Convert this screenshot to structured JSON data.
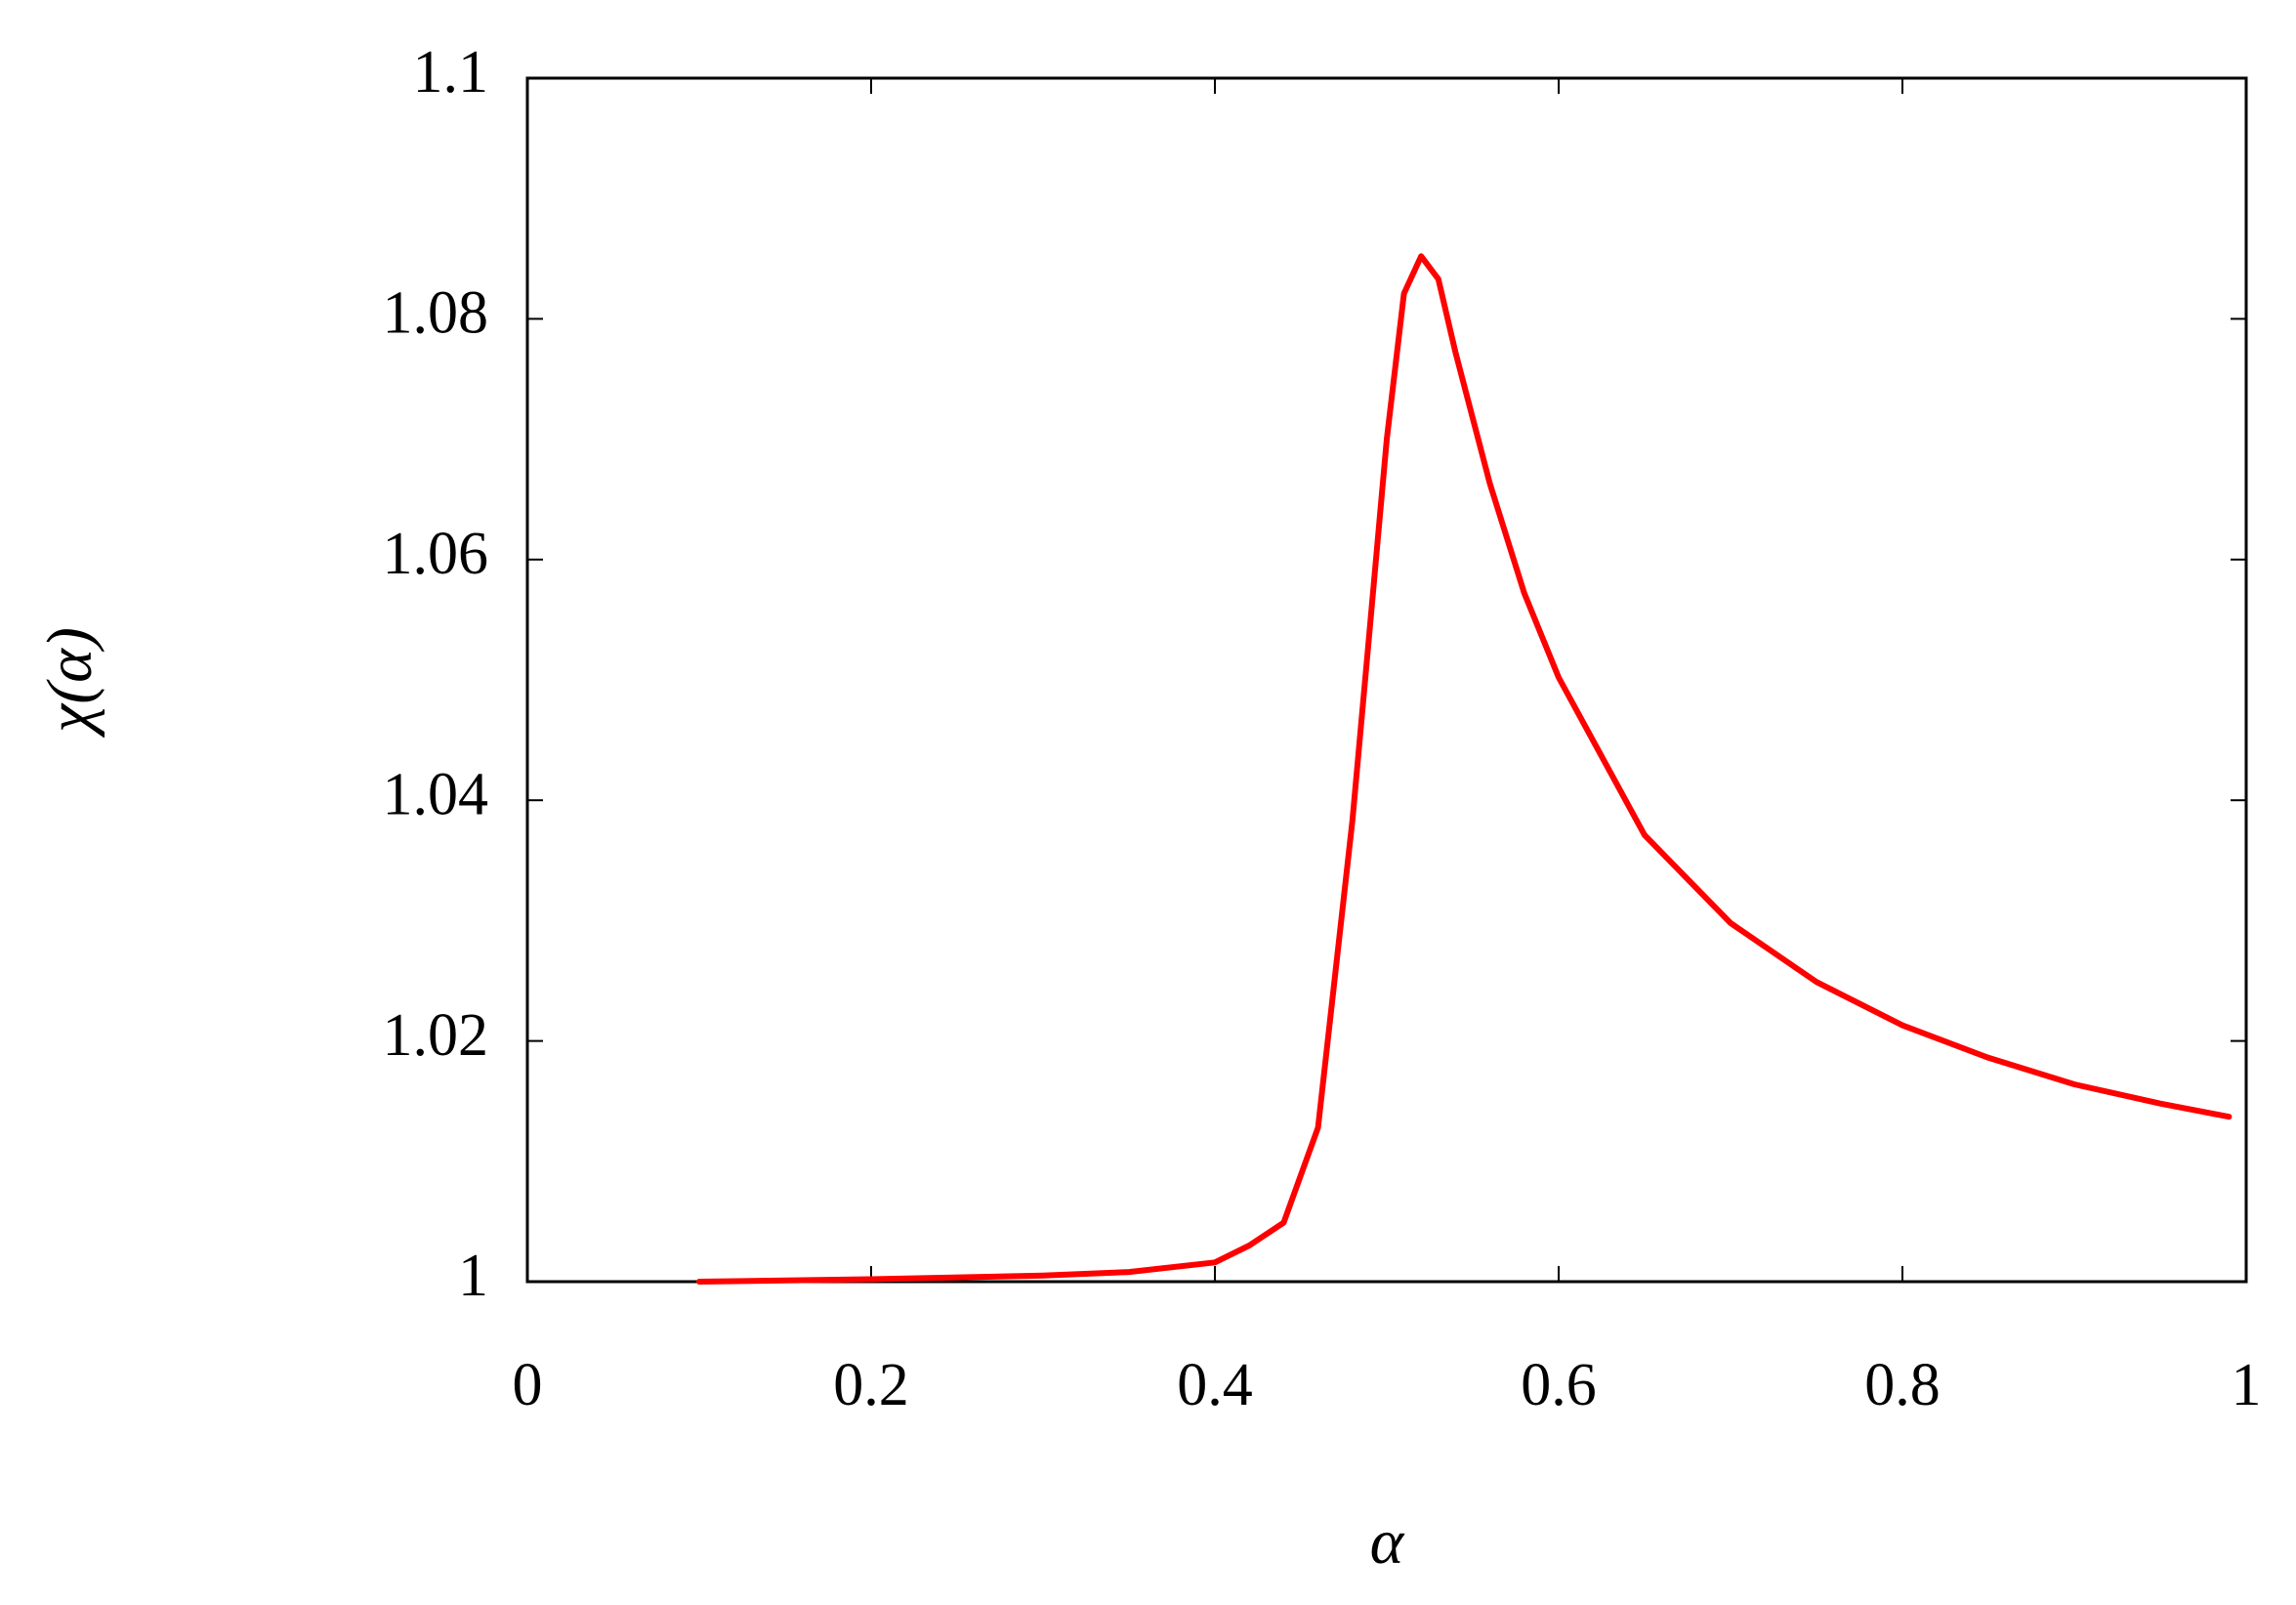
{
  "chart_data": {
    "type": "line",
    "xlabel": "α",
    "ylabel": "χ(α)",
    "x": [
      0.1,
      0.2,
      0.3,
      0.35,
      0.4,
      0.42,
      0.44,
      0.46,
      0.48,
      0.49,
      0.5,
      0.51,
      0.52,
      0.53,
      0.54,
      0.56,
      0.58,
      0.6,
      0.65,
      0.7,
      0.75,
      0.8,
      0.85,
      0.9,
      0.95,
      0.99
    ],
    "values": [
      1.0,
      1.0002,
      1.0005,
      1.0008,
      1.0016,
      1.003,
      1.0049,
      1.0128,
      1.0383,
      1.0541,
      1.07,
      1.0821,
      1.0852,
      1.0833,
      1.0772,
      1.0663,
      1.0572,
      1.0502,
      1.0371,
      1.0298,
      1.0249,
      1.0213,
      1.0186,
      1.0164,
      1.0148,
      1.0137
    ],
    "color": "#ff0000",
    "xlim": [
      0,
      1
    ],
    "xticks": [
      0,
      0.2,
      0.4,
      0.6,
      0.8,
      1
    ],
    "ylim": [
      1,
      1.1
    ],
    "yticks": [
      1,
      1.02,
      1.04,
      1.06,
      1.08,
      1.1
    ],
    "grid": false
  }
}
